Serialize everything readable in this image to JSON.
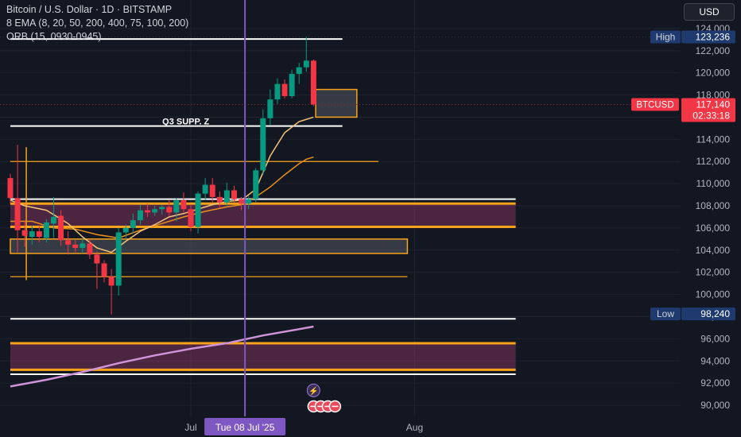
{
  "header": {
    "symbol": "Bitcoin / U.S. Dollar · 1D · BITSTAMP",
    "indicator1": "8 EMA (8, 20, 50, 200, 400, 75, 100, 200)",
    "indicator2": "ORB (15, 0930-0945)",
    "currency": "USD"
  },
  "colors": {
    "up": "#089981",
    "down": "#f23645",
    "background": "#131722",
    "orange": "#f7a21b",
    "purple": "#7e57c2",
    "ema200": "#ce93d8",
    "white": "#ffffff"
  },
  "chart_data": {
    "type": "candlestick",
    "title": "Bitcoin / U.S. Dollar · 1D · BITSTAMP",
    "ylim": [
      89000,
      126000
    ],
    "y_ticks": [
      "124,000",
      "122,000",
      "120,000",
      "118,000",
      "116,000",
      "114,000",
      "112,000",
      "110,000",
      "108,000",
      "106,000",
      "104,000",
      "102,000",
      "100,000",
      "98,000",
      "96,000",
      "94,000",
      "92,000",
      "90,000"
    ],
    "y_tick_values": [
      124000,
      122000,
      120000,
      118000,
      116000,
      114000,
      112000,
      110000,
      108000,
      106000,
      104000,
      102000,
      100000,
      98000,
      96000,
      94000,
      92000,
      90000
    ],
    "x_labels": [
      {
        "label": "Jul",
        "day": 25
      },
      {
        "label": "Aug",
        "day": 56
      }
    ],
    "crosshair": {
      "label": "Tue 08 Jul '25",
      "day": 32.5
    },
    "candles": [
      {
        "day": 0,
        "o": 110500,
        "h": 110900,
        "l": 108200,
        "c": 108700
      },
      {
        "day": 1,
        "o": 108700,
        "h": 113500,
        "l": 103800,
        "c": 105800
      },
      {
        "day": 2,
        "o": 105800,
        "h": 106700,
        "l": 104300,
        "c": 105300
      },
      {
        "day": 3,
        "o": 105200,
        "h": 106200,
        "l": 104500,
        "c": 105700
      },
      {
        "day": 4,
        "o": 105700,
        "h": 106200,
        "l": 104700,
        "c": 105200
      },
      {
        "day": 5,
        "o": 105100,
        "h": 106800,
        "l": 104700,
        "c": 106500
      },
      {
        "day": 6,
        "o": 106400,
        "h": 108800,
        "l": 105100,
        "c": 107000
      },
      {
        "day": 7,
        "o": 107100,
        "h": 107600,
        "l": 104400,
        "c": 104900
      },
      {
        "day": 8,
        "o": 104900,
        "h": 105700,
        "l": 103600,
        "c": 104500
      },
      {
        "day": 9,
        "o": 104500,
        "h": 104900,
        "l": 103800,
        "c": 104200
      },
      {
        "day": 10,
        "o": 104200,
        "h": 105100,
        "l": 103700,
        "c": 104600
      },
      {
        "day": 11,
        "o": 104600,
        "h": 105000,
        "l": 103200,
        "c": 103600
      },
      {
        "day": 12,
        "o": 103600,
        "h": 103900,
        "l": 100500,
        "c": 102800
      },
      {
        "day": 13,
        "o": 102800,
        "h": 103100,
        "l": 101100,
        "c": 101600
      },
      {
        "day": 14,
        "o": 101600,
        "h": 102300,
        "l": 98200,
        "c": 100800
      },
      {
        "day": 15,
        "o": 100800,
        "h": 106000,
        "l": 99900,
        "c": 105600
      },
      {
        "day": 16,
        "o": 105600,
        "h": 106300,
        "l": 105000,
        "c": 106000
      },
      {
        "day": 17,
        "o": 106000,
        "h": 107300,
        "l": 105500,
        "c": 106700
      },
      {
        "day": 18,
        "o": 106700,
        "h": 108100,
        "l": 106300,
        "c": 107600
      },
      {
        "day": 19,
        "o": 107600,
        "h": 108200,
        "l": 107000,
        "c": 107400
      },
      {
        "day": 20,
        "o": 107400,
        "h": 108000,
        "l": 107100,
        "c": 107700
      },
      {
        "day": 21,
        "o": 107700,
        "h": 108100,
        "l": 107200,
        "c": 107900
      },
      {
        "day": 22,
        "o": 107900,
        "h": 108500,
        "l": 107100,
        "c": 107400
      },
      {
        "day": 23,
        "o": 107400,
        "h": 108700,
        "l": 106600,
        "c": 108500
      },
      {
        "day": 24,
        "o": 108500,
        "h": 109200,
        "l": 107400,
        "c": 107700
      },
      {
        "day": 25,
        "o": 107700,
        "h": 108100,
        "l": 105700,
        "c": 106100
      },
      {
        "day": 26,
        "o": 106100,
        "h": 109300,
        "l": 105500,
        "c": 109100
      },
      {
        "day": 27,
        "o": 109100,
        "h": 110500,
        "l": 108500,
        "c": 109900
      },
      {
        "day": 28,
        "o": 109900,
        "h": 110500,
        "l": 108300,
        "c": 108800
      },
      {
        "day": 29,
        "o": 108800,
        "h": 109300,
        "l": 107800,
        "c": 108300
      },
      {
        "day": 30,
        "o": 108300,
        "h": 110100,
        "l": 108000,
        "c": 109400
      },
      {
        "day": 31,
        "o": 109400,
        "h": 109800,
        "l": 108300,
        "c": 108600
      },
      {
        "day": 32,
        "o": 108600,
        "h": 108800,
        "l": 107600,
        "c": 108200
      },
      {
        "day": 33,
        "o": 108200,
        "h": 108900,
        "l": 107700,
        "c": 108600
      },
      {
        "day": 34,
        "o": 108600,
        "h": 111400,
        "l": 108300,
        "c": 111200
      },
      {
        "day": 35,
        "o": 111200,
        "h": 116700,
        "l": 110800,
        "c": 115900
      },
      {
        "day": 36,
        "o": 115900,
        "h": 118500,
        "l": 115300,
        "c": 117600
      },
      {
        "day": 37,
        "o": 117600,
        "h": 119500,
        "l": 117200,
        "c": 119000
      },
      {
        "day": 38,
        "o": 119000,
        "h": 119400,
        "l": 117700,
        "c": 117900
      },
      {
        "day": 39,
        "o": 117900,
        "h": 120300,
        "l": 117700,
        "c": 119900
      },
      {
        "day": 40,
        "o": 119900,
        "h": 120900,
        "l": 119000,
        "c": 120500
      },
      {
        "day": 41,
        "o": 120500,
        "h": 123236,
        "l": 120100,
        "c": 121100
      },
      {
        "day": 42,
        "o": 121100,
        "h": 121200,
        "l": 117000,
        "c": 117140
      }
    ],
    "ema_short": [
      {
        "day": 0,
        "v": 108500
      },
      {
        "day": 2,
        "v": 108000
      },
      {
        "day": 5,
        "v": 107600
      },
      {
        "day": 8,
        "v": 106400
      },
      {
        "day": 10,
        "v": 105200
      },
      {
        "day": 12,
        "v": 104200
      },
      {
        "day": 14,
        "v": 103800
      },
      {
        "day": 16,
        "v": 104800
      },
      {
        "day": 18,
        "v": 105700
      },
      {
        "day": 20,
        "v": 106300
      },
      {
        "day": 22,
        "v": 107000
      },
      {
        "day": 24,
        "v": 107300
      },
      {
        "day": 26,
        "v": 107700
      },
      {
        "day": 28,
        "v": 108100
      },
      {
        "day": 30,
        "v": 108400
      },
      {
        "day": 32,
        "v": 108500
      },
      {
        "day": 34,
        "v": 109500
      },
      {
        "day": 36,
        "v": 112500
      },
      {
        "day": 38,
        "v": 114600
      },
      {
        "day": 40,
        "v": 115600
      },
      {
        "day": 42,
        "v": 116000
      }
    ],
    "ema_mid": [
      {
        "day": 0,
        "v": 106600
      },
      {
        "day": 3,
        "v": 106600
      },
      {
        "day": 6,
        "v": 106000
      },
      {
        "day": 9,
        "v": 105900
      },
      {
        "day": 12,
        "v": 105400
      },
      {
        "day": 15,
        "v": 105100
      },
      {
        "day": 18,
        "v": 105800
      },
      {
        "day": 21,
        "v": 106400
      },
      {
        "day": 24,
        "v": 107000
      },
      {
        "day": 27,
        "v": 107500
      },
      {
        "day": 30,
        "v": 107900
      },
      {
        "day": 32,
        "v": 108100
      },
      {
        "day": 34,
        "v": 108800
      },
      {
        "day": 36,
        "v": 109700
      },
      {
        "day": 38,
        "v": 110800
      },
      {
        "day": 40,
        "v": 111800
      },
      {
        "day": 41,
        "v": 112200
      },
      {
        "day": 42,
        "v": 112400
      }
    ],
    "ema_200": [
      {
        "day": 0,
        "v": 91700
      },
      {
        "day": 5,
        "v": 92300
      },
      {
        "day": 10,
        "v": 93000
      },
      {
        "day": 15,
        "v": 93800
      },
      {
        "day": 20,
        "v": 94500
      },
      {
        "day": 25,
        "v": 95100
      },
      {
        "day": 30,
        "v": 95600
      },
      {
        "day": 35,
        "v": 96300
      },
      {
        "day": 42,
        "v": 97100
      }
    ],
    "annotations": [
      {
        "text": "Q3 SUPP. Z",
        "price": 115000,
        "day": 15.5
      }
    ],
    "horizontal_lines": [
      {
        "price": 123050,
        "from_day": 0,
        "to_day": 46,
        "color": "white"
      },
      {
        "price": 115200,
        "from_day": 0,
        "to_day": 46,
        "color": "white"
      },
      {
        "price": 112000,
        "from_day": 0,
        "to_day": 51,
        "color": "orange"
      },
      {
        "price": 108600,
        "from_day": 0,
        "to_day": 70,
        "color": "white"
      },
      {
        "price": 101600,
        "from_day": 0,
        "to_day": 55,
        "color": "orange"
      },
      {
        "price": 97800,
        "from_day": 0,
        "to_day": 70,
        "color": "white"
      },
      {
        "price": 92800,
        "from_day": 0,
        "to_day": 70,
        "color": "white"
      }
    ],
    "zones": [
      {
        "from": 106100,
        "to": 108200,
        "from_day": 0,
        "to_day": 70,
        "style": "purple"
      },
      {
        "from": 103700,
        "to": 105000,
        "from_day": 0,
        "to_day": 55,
        "style": "grey"
      },
      {
        "from": 93200,
        "to": 95600,
        "from_day": 0,
        "to_day": 70,
        "style": "purple"
      },
      {
        "from": 116000,
        "to": 118500,
        "from_day": 42.3,
        "to_day": 48,
        "style": "grey"
      }
    ],
    "orb_line": {
      "day": 1,
      "from": 101300,
      "to": 113300
    },
    "price_labels": [
      {
        "name": "High",
        "value": "123,236",
        "price": 123236,
        "color": "#1e3a6e"
      },
      {
        "name": "BTCUSD",
        "value": "117,140",
        "price": 117140,
        "timer": "02:33:18",
        "color": "#f23645"
      },
      {
        "name": "Low",
        "value": "98,240",
        "price": 98240,
        "color": "#1e3a6e"
      }
    ]
  }
}
